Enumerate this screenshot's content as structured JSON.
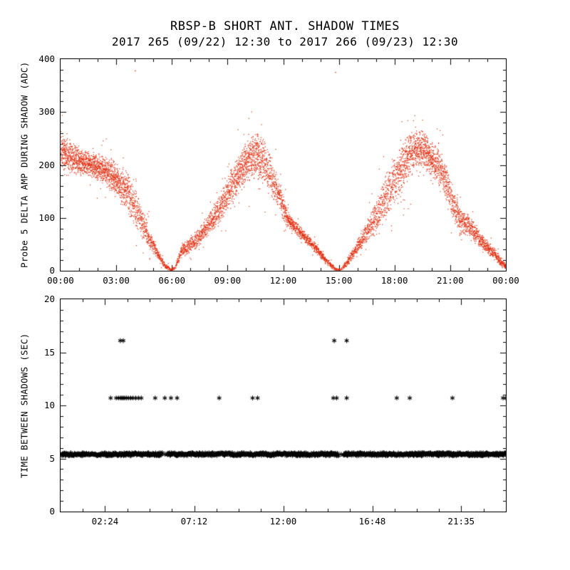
{
  "title": "RBSP-B SHORT ANT. SHADOW TIMES",
  "subtitle": "2017 265 (09/22) 12:30 to 2017 266 (09/23) 12:30",
  "colors": {
    "background": "#ffffff",
    "axis": "#000000",
    "top_scatter": "#e22b0c",
    "bottom_scatter": "#000000"
  },
  "chart_data": [
    {
      "type": "scatter",
      "panel": "top",
      "ylabel": "Probe 5 DELTA AMP DURING SHADOW (ADC)",
      "xlabel": "",
      "xlim_hours": [
        0,
        24
      ],
      "ylim": [
        0,
        400
      ],
      "y_tick_values": [
        0,
        100,
        200,
        300,
        400
      ],
      "y_tick_labels": [
        "0",
        "100",
        "200",
        "300",
        "400"
      ],
      "y_minor_step": 20,
      "x_tick_hours": [
        0,
        3,
        6,
        9,
        12,
        15,
        18,
        21,
        24
      ],
      "x_tick_labels": [
        "00:00",
        "03:00",
        "06:00",
        "09:00",
        "12:00",
        "15:00",
        "18:00",
        "21:00",
        "00:00"
      ],
      "x_minor_step_hours": 1,
      "marker": "pixel-dot",
      "color": "#e22b0c",
      "grid": false,
      "envelope_t_mean_spread_weight": [
        [
          0.0,
          228,
          34,
          3.0
        ],
        [
          0.6,
          212,
          28,
          3.0
        ],
        [
          1.2,
          204,
          24,
          3.0
        ],
        [
          1.8,
          198,
          24,
          3.0
        ],
        [
          2.4,
          188,
          26,
          3.0
        ],
        [
          3.0,
          172,
          32,
          3.0
        ],
        [
          3.6,
          148,
          38,
          2.5
        ],
        [
          4.2,
          105,
          30,
          2.0
        ],
        [
          4.8,
          60,
          18,
          2.0
        ],
        [
          5.2,
          32,
          10,
          1.6
        ],
        [
          5.6,
          10,
          6,
          1.2
        ],
        [
          5.9,
          2,
          2,
          0.8
        ],
        [
          6.15,
          4,
          3,
          0.8
        ],
        [
          6.5,
          38,
          14,
          1.8
        ],
        [
          6.9,
          48,
          14,
          1.8
        ],
        [
          7.4,
          62,
          16,
          1.8
        ],
        [
          8.0,
          88,
          20,
          2.0
        ],
        [
          8.6,
          120,
          26,
          2.2
        ],
        [
          9.2,
          160,
          32,
          2.5
        ],
        [
          9.7,
          192,
          36,
          3.0
        ],
        [
          10.2,
          212,
          40,
          3.0
        ],
        [
          10.6,
          218,
          42,
          3.0
        ],
        [
          11.0,
          202,
          40,
          2.5
        ],
        [
          11.4,
          175,
          34,
          2.2
        ],
        [
          11.8,
          140,
          28,
          2.0
        ],
        [
          12.2,
          98,
          16,
          2.6
        ],
        [
          12.7,
          80,
          12,
          2.0
        ],
        [
          13.2,
          62,
          10,
          1.8
        ],
        [
          13.8,
          40,
          9,
          1.8
        ],
        [
          14.3,
          18,
          7,
          1.4
        ],
        [
          14.8,
          3,
          3,
          0.8
        ],
        [
          15.1,
          2,
          2,
          0.6
        ],
        [
          15.5,
          18,
          8,
          1.4
        ],
        [
          15.9,
          42,
          12,
          1.8
        ],
        [
          16.4,
          68,
          18,
          1.8
        ],
        [
          17.0,
          102,
          30,
          2.0
        ],
        [
          17.5,
          140,
          42,
          2.2
        ],
        [
          18.0,
          172,
          46,
          2.4
        ],
        [
          18.6,
          208,
          44,
          2.8
        ],
        [
          19.1,
          230,
          38,
          3.0
        ],
        [
          19.5,
          232,
          34,
          3.0
        ],
        [
          19.9,
          215,
          30,
          3.0
        ],
        [
          20.3,
          198,
          30,
          2.6
        ],
        [
          20.7,
          175,
          34,
          2.4
        ],
        [
          21.1,
          132,
          30,
          2.0
        ],
        [
          21.5,
          95,
          26,
          2.4
        ],
        [
          21.9,
          88,
          22,
          2.0
        ],
        [
          22.3,
          72,
          18,
          2.0
        ],
        [
          22.8,
          52,
          14,
          1.8
        ],
        [
          23.3,
          34,
          11,
          1.8
        ],
        [
          23.7,
          18,
          8,
          1.6
        ],
        [
          24.0,
          6,
          5,
          1.6
        ]
      ],
      "outliers_t_y": [
        [
          4.0,
          378
        ],
        [
          14.8,
          375
        ]
      ]
    },
    {
      "type": "scatter",
      "panel": "bottom",
      "ylabel": "TIME BETWEEN SHADOWS (SEC)",
      "xlabel": "",
      "xlim_hours": [
        0,
        24
      ],
      "ylim": [
        0,
        20
      ],
      "y_tick_values": [
        0,
        5,
        10,
        15,
        20
      ],
      "y_tick_labels": [
        "0",
        "5",
        "10",
        "15",
        "20"
      ],
      "y_minor_step": 1,
      "x_tick_hours": [
        2.4,
        7.2,
        12.0,
        16.8,
        21.59
      ],
      "x_tick_labels": [
        "02:24",
        "07:12",
        "12:00",
        "16:48",
        "21:35"
      ],
      "x_minor_step_hours": 1.2,
      "marker": "asterisk",
      "color": "#000000",
      "grid": false,
      "bands": [
        {
          "value_sec": 5.4,
          "mode": "continuous",
          "start_hour": 0.05,
          "end_hour": 24.0,
          "step_hours": 0.025,
          "gaps_hours": [
            [
              5.5,
              5.74
            ],
            [
              15.0,
              15.24
            ]
          ],
          "singles_in_gaps_hours": [
            5.62,
            15.12
          ]
        },
        {
          "value_sec": 10.7,
          "mode": "points",
          "times_hours": [
            2.7,
            3.0,
            3.12,
            3.22,
            3.3,
            3.38,
            3.46,
            3.55,
            3.65,
            3.78,
            3.9,
            4.05,
            4.2,
            4.35,
            5.1,
            5.62,
            5.95,
            6.28,
            8.55,
            10.35,
            10.62,
            14.7,
            14.88,
            15.42,
            18.12,
            18.82,
            21.12,
            23.85,
            24.0
          ]
        },
        {
          "value_sec": 16.1,
          "mode": "points",
          "times_hours": [
            3.22,
            3.38,
            14.75,
            15.42
          ]
        }
      ]
    }
  ]
}
